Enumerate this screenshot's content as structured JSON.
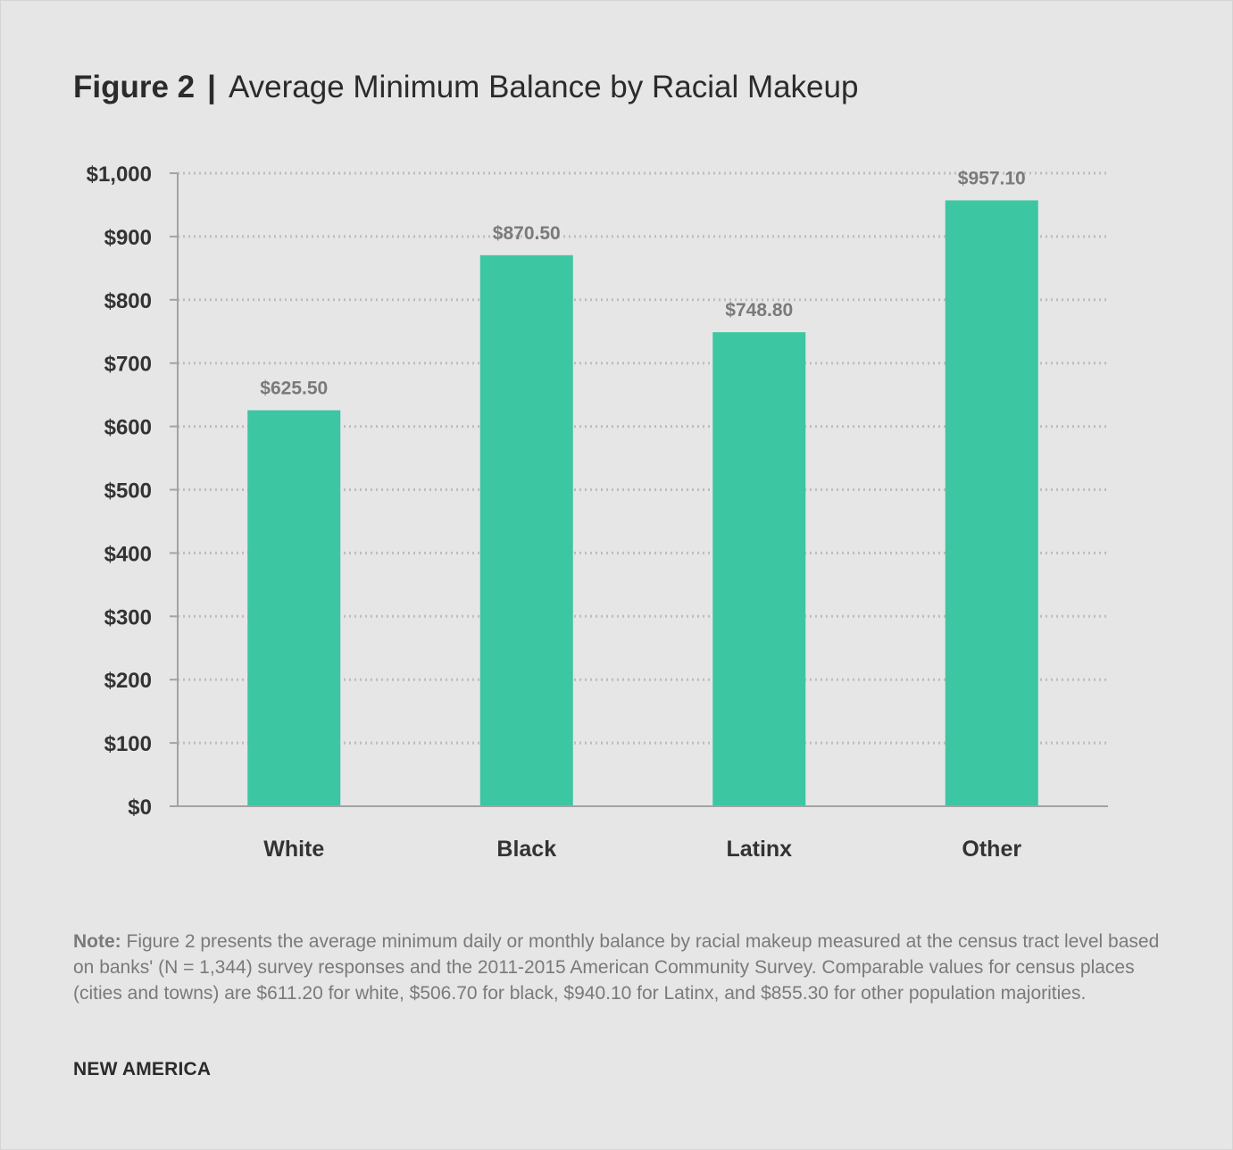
{
  "header": {
    "figure_label": "Figure 2",
    "separator": "|",
    "title": "Average Minimum Balance by Racial Makeup"
  },
  "chart_data": {
    "type": "bar",
    "categories": [
      "White",
      "Black",
      "Latinx",
      "Other"
    ],
    "values": [
      625.5,
      870.5,
      748.8,
      957.1
    ],
    "data_labels": [
      "$625.50",
      "$870.50",
      "$748.80",
      "$957.10"
    ],
    "y_ticks": [
      0,
      100,
      200,
      300,
      400,
      500,
      600,
      700,
      800,
      900,
      1000
    ],
    "y_tick_labels": [
      "$0",
      "$100",
      "$200",
      "$300",
      "$400",
      "$500",
      "$600",
      "$700",
      "$800",
      "$900",
      "$1,000"
    ],
    "ylim": [
      0,
      1000
    ],
    "grid": true,
    "legend": "none",
    "bar_color": "#3cc6a2"
  },
  "note": {
    "label": "Note:",
    "text": " Figure 2 presents the average minimum daily or monthly balance by racial makeup measured at the census tract level based on banks' (N = 1,344) survey responses and the 2011-2015 American Community Survey. Comparable values for census places (cities and towns) are $611.20 for white, $506.70 for black, $940.10 for Latinx, and $855.30 for other population majorities."
  },
  "footer": {
    "brand": "NEW AMERICA"
  }
}
